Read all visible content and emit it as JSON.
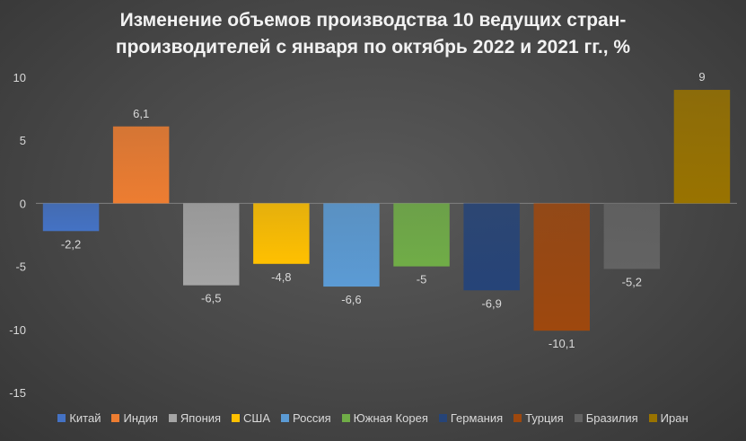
{
  "chart_data": {
    "type": "bar",
    "title_line1": "Изменение объемов производства 10 ведущих стран-",
    "title_line2": "производителей с января по октябрь 2022 и 2021 гг., %",
    "categories": [
      "Китай",
      "Индия",
      "Япония",
      "США",
      "Россия",
      "Южная Корея",
      "Германия",
      "Турция",
      "Бразилия",
      "Иран"
    ],
    "values": [
      -2.2,
      6.1,
      -6.5,
      -4.8,
      -6.6,
      -5,
      -6.9,
      -10.1,
      -5.2,
      9
    ],
    "data_labels": [
      "-2,2",
      "6,1",
      "-6,5",
      "-4,8",
      "-6,6",
      "-5",
      "-6,9",
      "-10,1",
      "-5,2",
      "9"
    ],
    "colors": [
      "#4472c4",
      "#ed7d31",
      "#a5a5a5",
      "#ffc000",
      "#5b9bd5",
      "#70ad47",
      "#264478",
      "#9e480e",
      "#636363",
      "#997300"
    ],
    "ylim": [
      -15,
      10
    ],
    "yticks": [
      10,
      5,
      0,
      -5,
      -10,
      -15
    ],
    "grid": false,
    "legend_position": "bottom"
  }
}
